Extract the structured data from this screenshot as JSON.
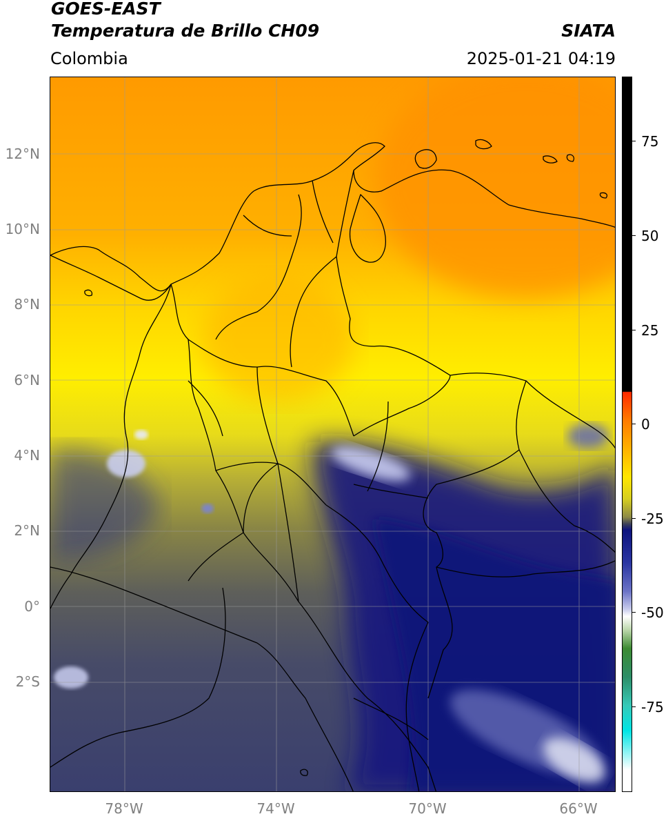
{
  "header": {
    "satellite": "GOES-EAST",
    "product": "Temperatura de Brillo CH09",
    "organization": "SIATA",
    "region": "Colombia",
    "timestamp": "2025-01-21 04:19"
  },
  "axes": {
    "latitude_labels": [
      "12°N",
      "10°N",
      "8°N",
      "6°N",
      "4°N",
      "2°N",
      "0°",
      "2°S"
    ],
    "longitude_labels": [
      "78°W",
      "74°W",
      "70°W",
      "66°W"
    ]
  },
  "colorbar": {
    "tick_labels": [
      "75",
      "50",
      "25",
      "0",
      "-25",
      "-50",
      "-75"
    ]
  },
  "colors": {
    "warm_orange": "#ff9a00",
    "yellow": "#ffe000",
    "olive": "#a8a23a",
    "deep_blue": "#10147e",
    "gray_blue": "#4a4e6a"
  }
}
